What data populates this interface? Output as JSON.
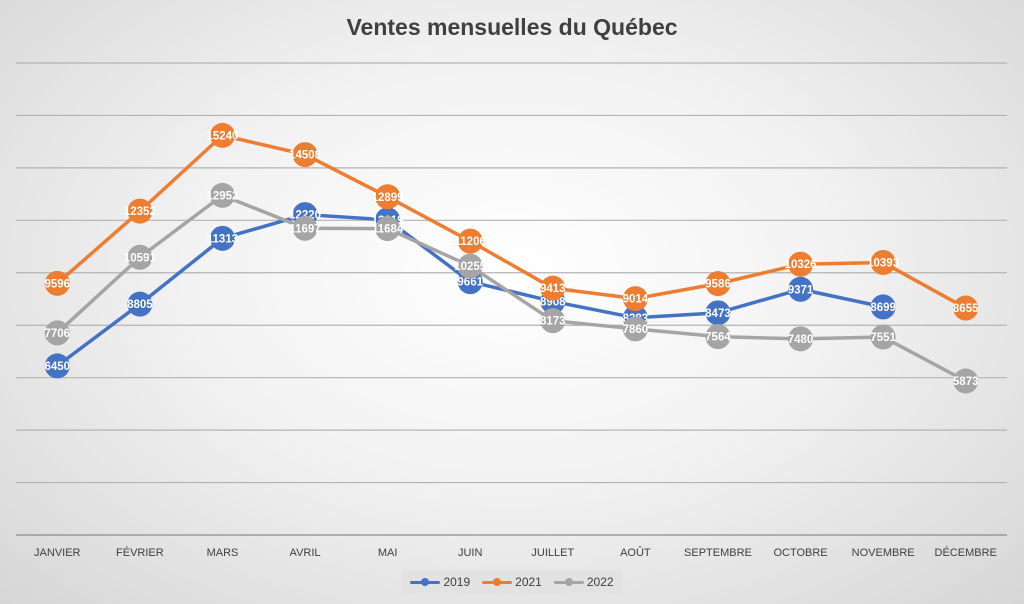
{
  "chart_data": {
    "type": "line",
    "title": "Ventes mensuelles du Québec",
    "categories": [
      "JANVIER",
      "FÉVRIER",
      "MARS",
      "AVRIL",
      "MAI",
      "JUIN",
      "JUILLET",
      "AOÛT",
      "SEPTEMBRE",
      "OCTOBRE",
      "NOVEMBRE",
      "DÉCEMBRE"
    ],
    "series": [
      {
        "name": "2019",
        "color": "#4472c4",
        "values": [
          6450,
          8805,
          11313,
          12220,
          12019,
          9661,
          8908,
          8283,
          8473,
          9371,
          8699,
          null
        ]
      },
      {
        "name": "2021",
        "color": "#ed7d31",
        "values": [
          9596,
          12352,
          15240,
          14508,
          12899,
          11206,
          9413,
          9014,
          9586,
          10326,
          10393,
          8655
        ]
      },
      {
        "name": "2022",
        "color": "#a5a5a5",
        "values": [
          7706,
          10591,
          12952,
          11697,
          11684,
          10255,
          8173,
          7860,
          7564,
          7480,
          7551,
          5873
        ]
      }
    ],
    "xlabel": "",
    "ylabel": "",
    "ylim": [
      0,
      18000
    ],
    "ytick_step": 2000,
    "y_tick_labels_shown": false,
    "grid": true,
    "data_labels": true,
    "legend": "bottom"
  }
}
